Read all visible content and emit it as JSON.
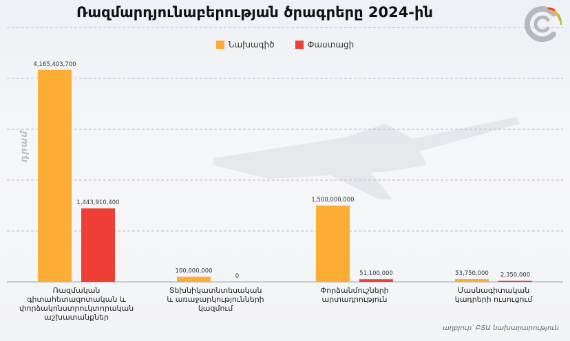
{
  "header": {
    "title": "Ռազմարդյունաբերության ծրագրերը 2024-ին"
  },
  "colors": {
    "planned": "#fbad36",
    "actual": "#ef3e36"
  },
  "chart_data": {
    "type": "bar",
    "title": "Ռազմարդյունաբերության ծրագրերը 2024-ին",
    "ylabel": "դրամ",
    "ylim": [
      0,
      5000000000
    ],
    "grid": true,
    "legend_position": "top-center",
    "categories": [
      "Ռազմական գիտահետազոտական և փորձակոնստրուկտորական աշխատանքներ",
      "Տեխնիկատնտեսական և առաջարկությունների կազմում",
      "Փորձանմուշների արտադրություն",
      "Մասնագիտական կադրերի ուսուցում"
    ],
    "category_lines": [
      [
        "Ռազմական",
        "գիտահետազոտական և",
        "փորձակոնստրուկտորական",
        "աշխատանքներ"
      ],
      [
        "Տեխնիկատնտեսական",
        "և առաջարկությունների",
        "կազմում"
      ],
      [
        "Փորձանմուշների",
        "արտադրություն"
      ],
      [
        "Մասնագիտական",
        "կադրերի ուսուցում"
      ]
    ],
    "series": [
      {
        "name": "Նախագիծ",
        "values": [
          4165403700,
          100000000,
          1500000000,
          53750000
        ],
        "labels": [
          "4,165,403,700",
          "100,000,000",
          "1,500,000,000",
          "53,750,000"
        ]
      },
      {
        "name": "Փաստացի",
        "values": [
          1443910400,
          0,
          51100000,
          2350000
        ],
        "labels": [
          "1,443,910,400",
          "0",
          "51,100,000",
          "2,350,000"
        ]
      }
    ]
  },
  "footer": {
    "source": "աղբյուր՝ ԲՏԱ նախարարություն"
  }
}
